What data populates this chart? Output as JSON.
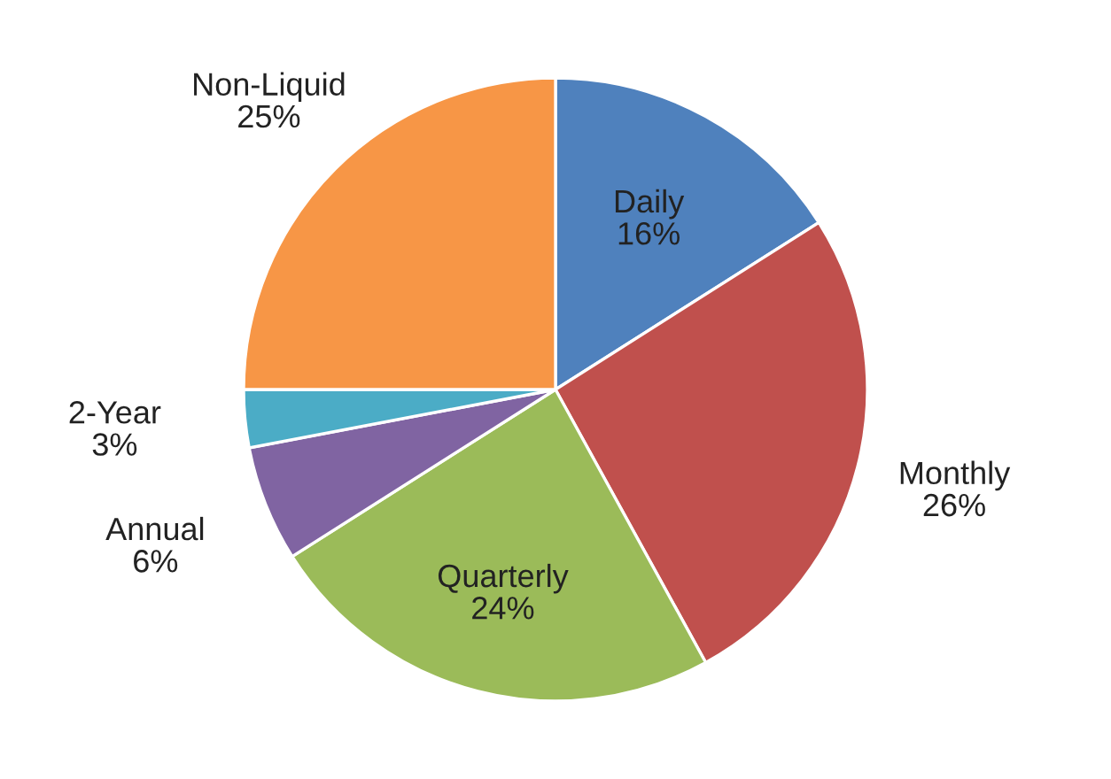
{
  "chart_data": {
    "type": "pie",
    "categories": [
      "Daily",
      "Monthly",
      "Quarterly",
      "Annual",
      "2-Year",
      "Non-Liquid"
    ],
    "values": [
      16,
      26,
      24,
      6,
      3,
      25
    ],
    "colors": [
      "#4f81bd",
      "#c0504d",
      "#9bbb59",
      "#8064a2",
      "#4bacc6",
      "#f79646"
    ],
    "value_labels": [
      "16%",
      "26%",
      "24%",
      "6%",
      "3%",
      "25%"
    ]
  }
}
